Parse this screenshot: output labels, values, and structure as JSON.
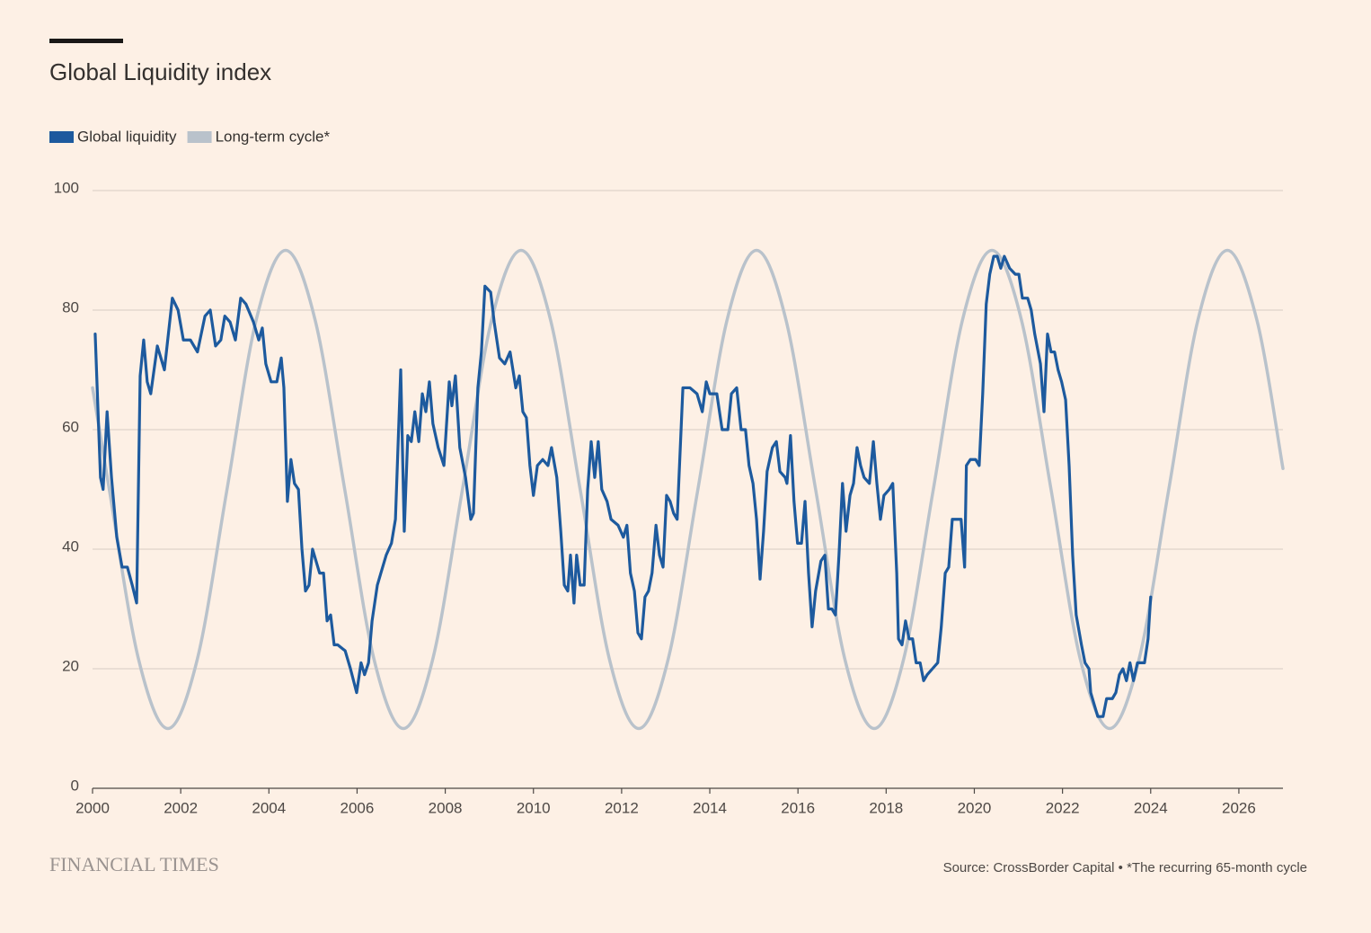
{
  "chart_data": {
    "type": "line",
    "title": "Global Liquidity index",
    "source": "Source: CrossBorder Capital • *The recurring 65-month cycle",
    "logo": "FINANCIAL TIMES",
    "xlim": [
      2000,
      2027
    ],
    "xticks": [
      2000,
      2002,
      2004,
      2006,
      2008,
      2010,
      2012,
      2014,
      2016,
      2018,
      2020,
      2022,
      2024,
      2026
    ],
    "ylim": [
      0,
      100
    ],
    "yticks": [
      0,
      20,
      40,
      60,
      80,
      100
    ],
    "grid": true,
    "legend": "top-left",
    "series": [
      {
        "name": "Global liquidity",
        "color": "#1d5a9e",
        "smooth": false,
        "x": [
          2000.06,
          2000.18,
          2000.24,
          2000.33,
          2000.43,
          2000.55,
          2000.67,
          2000.79,
          2000.9,
          2001,
          2001.08,
          2001.16,
          2001.24,
          2001.32,
          2001.47,
          2001.63,
          2001.81,
          2001.94,
          2002.06,
          2002.22,
          2002.38,
          2002.55,
          2002.67,
          2002.79,
          2002.91,
          2003,
          2003.12,
          2003.24,
          2003.36,
          2003.48,
          2003.65,
          2003.77,
          2003.85,
          2003.93,
          2004.05,
          2004.18,
          2004.28,
          2004.34,
          2004.42,
          2004.5,
          2004.58,
          2004.67,
          2004.75,
          2004.83,
          2004.91,
          2004.99,
          2005.07,
          2005.15,
          2005.24,
          2005.32,
          2005.4,
          2005.48,
          2005.56,
          2005.73,
          2005.85,
          2005.99,
          2006.09,
          2006.17,
          2006.26,
          2006.34,
          2006.46,
          2006.54,
          2006.66,
          2006.78,
          2006.87,
          2006.99,
          2007.07,
          2007.15,
          2007.23,
          2007.31,
          2007.4,
          2007.48,
          2007.56,
          2007.64,
          2007.72,
          2007.84,
          2007.97,
          2008.09,
          2008.15,
          2008.23,
          2008.33,
          2008.46,
          2008.58,
          2008.64,
          2008.74,
          2008.82,
          2008.9,
          2009.03,
          2009.11,
          2009.23,
          2009.35,
          2009.47,
          2009.6,
          2009.68,
          2009.76,
          2009.84,
          2009.92,
          2010,
          2010.09,
          2010.21,
          2010.33,
          2010.41,
          2010.53,
          2010.62,
          2010.7,
          2010.78,
          2010.84,
          2010.92,
          2010.98,
          2011.06,
          2011.15,
          2011.23,
          2011.31,
          2011.39,
          2011.47,
          2011.55,
          2011.67,
          2011.76,
          2011.92,
          2012.04,
          2012.12,
          2012.2,
          2012.29,
          2012.37,
          2012.45,
          2012.53,
          2012.61,
          2012.69,
          2012.78,
          2012.86,
          2012.94,
          2013.02,
          2013.1,
          2013.18,
          2013.26,
          2013.39,
          2013.55,
          2013.71,
          2013.83,
          2013.92,
          2014,
          2014.08,
          2014.16,
          2014.28,
          2014.41,
          2014.49,
          2014.61,
          2014.71,
          2014.81,
          2014.89,
          2014.98,
          2015.06,
          2015.14,
          2015.22,
          2015.3,
          2015.42,
          2015.51,
          2015.59,
          2015.71,
          2015.75,
          2015.83,
          2015.91,
          2015.99,
          2016.08,
          2016.16,
          2016.24,
          2016.32,
          2016.4,
          2016.52,
          2016.61,
          2016.69,
          2016.77,
          2016.85,
          2016.93,
          2017.01,
          2017.09,
          2017.18,
          2017.26,
          2017.34,
          2017.42,
          2017.5,
          2017.62,
          2017.71,
          2017.79,
          2017.87,
          2017.95,
          2018.07,
          2018.15,
          2018.24,
          2018.28,
          2018.36,
          2018.44,
          2018.52,
          2018.6,
          2018.68,
          2018.77,
          2018.85,
          2018.93,
          2019.05,
          2019.17,
          2019.25,
          2019.34,
          2019.42,
          2019.5,
          2019.62,
          2019.7,
          2019.78,
          2019.82,
          2019.91,
          2020.03,
          2020.11,
          2020.19,
          2020.27,
          2020.35,
          2020.44,
          2020.52,
          2020.6,
          2020.68,
          2020.8,
          2020.93,
          2021.01,
          2021.09,
          2021.21,
          2021.29,
          2021.37,
          2021.5,
          2021.58,
          2021.66,
          2021.74,
          2021.82,
          2021.9,
          2021.98,
          2022.07,
          2022.15,
          2022.23,
          2022.31,
          2022.43,
          2022.51,
          2022.6,
          2022.64,
          2022.72,
          2022.8,
          2022.92,
          2023,
          2023.13,
          2023.21,
          2023.29,
          2023.37,
          2023.45,
          2023.53,
          2023.61,
          2023.7,
          2023.78,
          2023.86,
          2023.94,
          2024
        ],
        "values": [
          76,
          52,
          50,
          63,
          52,
          42,
          37,
          37,
          34,
          31,
          69,
          75,
          68,
          66,
          74,
          70,
          82,
          80,
          75,
          75,
          73,
          79,
          80,
          74,
          75,
          79,
          78,
          75,
          82,
          81,
          78,
          75,
          77,
          71,
          68,
          68,
          72,
          67,
          48,
          55,
          51,
          50,
          40,
          33,
          34,
          40,
          38,
          36,
          36,
          28,
          29,
          24,
          24,
          23,
          20,
          16,
          21,
          19,
          21,
          28,
          34,
          36,
          39,
          41,
          45,
          70,
          43,
          59,
          58,
          63,
          58,
          66,
          63,
          68,
          61,
          57,
          54,
          68,
          64,
          69,
          57,
          52,
          45,
          46,
          67,
          73,
          84,
          83,
          78,
          72,
          71,
          73,
          67,
          69,
          63,
          62,
          54,
          49,
          54,
          55,
          54,
          57,
          52,
          43,
          34,
          33,
          39,
          31,
          39,
          34,
          34,
          50,
          58,
          52,
          58,
          50,
          48,
          45,
          44,
          42,
          44,
          36,
          33,
          26,
          25,
          32,
          33,
          36,
          44,
          39,
          37,
          49,
          48,
          46,
          45,
          67,
          67,
          66,
          63,
          68,
          66,
          66,
          66,
          60,
          60,
          66,
          67,
          60,
          60,
          54,
          51,
          45,
          35,
          43,
          53,
          57,
          58,
          53,
          52,
          51,
          59,
          48,
          41,
          41,
          48,
          36,
          27,
          33,
          38,
          39,
          30,
          30,
          29,
          39,
          51,
          43,
          49,
          51,
          57,
          54,
          52,
          51,
          58,
          51,
          45,
          49,
          50,
          51,
          36,
          25,
          24,
          28,
          25,
          25,
          21,
          21,
          18,
          19,
          20,
          21,
          27,
          36,
          37,
          45,
          45,
          45,
          37,
          54,
          55,
          55,
          54,
          66,
          81,
          86,
          89,
          89,
          87,
          89,
          87,
          86,
          86,
          82,
          82,
          80,
          76,
          71,
          63,
          76,
          73,
          73,
          70,
          68,
          65,
          54,
          39,
          29,
          24,
          21,
          20,
          16,
          14,
          12,
          12,
          15,
          15,
          16,
          19,
          20,
          18,
          21,
          18,
          21,
          21,
          21,
          25,
          32
        ]
      },
      {
        "name": "Long-term cycle*",
        "color": "#b9c2cb",
        "smooth": true,
        "x": [
          2000,
          2000.38,
          2001.04,
          2001.71,
          2002.38,
          2003.05,
          2003.71,
          2004.38,
          2005.05,
          2005.72,
          2006.38,
          2007.05,
          2007.72,
          2008.39,
          2009.05,
          2009.72,
          2010.39,
          2011.06,
          2011.72,
          2012.39,
          2013.06,
          2013.73,
          2014.39,
          2015.06,
          2015.73,
          2016.4,
          2017.06,
          2017.73,
          2018.4,
          2019.07,
          2019.73,
          2020.4,
          2021.07,
          2021.74,
          2022.4,
          2023.07,
          2023.74,
          2024.41,
          2025.07,
          2025.74,
          2026.41,
          2027
        ],
        "values": [
          67,
          50,
          21.7,
          10,
          21.7,
          50,
          78.3,
          90,
          78.3,
          50,
          21.7,
          10,
          21.7,
          50,
          78.3,
          90,
          78.3,
          50,
          21.7,
          10,
          21.7,
          50,
          78.3,
          90,
          78.3,
          50,
          21.7,
          10,
          21.7,
          50,
          78.3,
          90,
          78.3,
          50,
          21.7,
          10,
          21.7,
          50,
          78.3,
          90,
          78.3,
          53.5
        ]
      }
    ]
  }
}
